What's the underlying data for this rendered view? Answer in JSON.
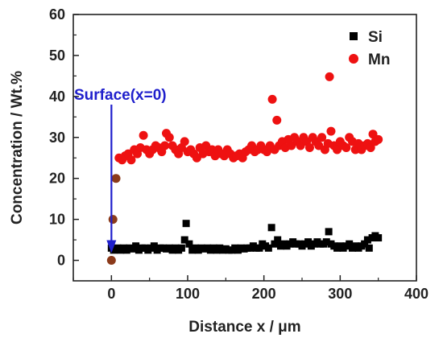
{
  "colors": {
    "si": "#000000",
    "mn": "#ee1111",
    "mn_near_surface": "#8b3a1a",
    "annotation": "#1f1fcc"
  },
  "chart_data": {
    "type": "scatter",
    "title": "",
    "xlabel": "Distance x / μm",
    "ylabel": "Concentration  / Wt.%",
    "xlim": [
      -50,
      400
    ],
    "ylim": [
      -5,
      60
    ],
    "xticks": [
      0,
      100,
      200,
      300,
      400
    ],
    "yticks": [
      0,
      10,
      20,
      30,
      40,
      50,
      60
    ],
    "grid": false,
    "legend_position": "top-right",
    "annotation": {
      "text": "Surface(x=0)",
      "arrow_x": 0,
      "arrow_y": 1
    },
    "series": [
      {
        "name": "Si",
        "marker": "square",
        "points": [
          [
            0,
            3
          ],
          [
            3,
            2.5
          ],
          [
            8,
            3
          ],
          [
            12,
            2.5
          ],
          [
            16,
            3
          ],
          [
            20,
            2.5
          ],
          [
            24,
            3
          ],
          [
            28,
            2.8
          ],
          [
            32,
            3.5
          ],
          [
            36,
            2.5
          ],
          [
            40,
            3
          ],
          [
            44,
            3
          ],
          [
            48,
            2.5
          ],
          [
            52,
            3
          ],
          [
            56,
            3.5
          ],
          [
            60,
            2.5
          ],
          [
            64,
            3
          ],
          [
            68,
            3
          ],
          [
            72,
            2.8
          ],
          [
            76,
            3
          ],
          [
            80,
            2.5
          ],
          [
            84,
            3
          ],
          [
            88,
            2.5
          ],
          [
            92,
            3
          ],
          [
            96,
            5
          ],
          [
            98,
            9
          ],
          [
            102,
            4
          ],
          [
            106,
            2.5
          ],
          [
            110,
            3
          ],
          [
            114,
            2.5
          ],
          [
            118,
            3
          ],
          [
            122,
            2.8
          ],
          [
            126,
            3
          ],
          [
            130,
            2.5
          ],
          [
            134,
            3
          ],
          [
            138,
            2.5
          ],
          [
            142,
            3
          ],
          [
            146,
            2.5
          ],
          [
            150,
            2.8
          ],
          [
            154,
            2.5
          ],
          [
            158,
            2.5
          ],
          [
            162,
            3
          ],
          [
            166,
            2.5
          ],
          [
            170,
            3
          ],
          [
            174,
            2.8
          ],
          [
            178,
            3
          ],
          [
            182,
            3
          ],
          [
            186,
            3.5
          ],
          [
            190,
            3
          ],
          [
            194,
            3
          ],
          [
            198,
            4
          ],
          [
            202,
            3.5
          ],
          [
            206,
            3
          ],
          [
            210,
            8
          ],
          [
            214,
            4
          ],
          [
            218,
            5
          ],
          [
            222,
            3.5
          ],
          [
            226,
            4
          ],
          [
            230,
            3.5
          ],
          [
            234,
            4
          ],
          [
            238,
            4.5
          ],
          [
            242,
            4
          ],
          [
            246,
            4
          ],
          [
            250,
            3.5
          ],
          [
            254,
            4
          ],
          [
            258,
            4.5
          ],
          [
            262,
            3.5
          ],
          [
            266,
            4
          ],
          [
            270,
            4.5
          ],
          [
            274,
            4
          ],
          [
            278,
            4
          ],
          [
            282,
            4.5
          ],
          [
            285,
            7
          ],
          [
            288,
            4
          ],
          [
            292,
            3.5
          ],
          [
            296,
            3
          ],
          [
            300,
            3.5
          ],
          [
            304,
            3
          ],
          [
            308,
            3.5
          ],
          [
            312,
            4
          ],
          [
            316,
            3
          ],
          [
            320,
            3.5
          ],
          [
            324,
            3
          ],
          [
            328,
            3.5
          ],
          [
            332,
            4
          ],
          [
            336,
            5
          ],
          [
            338,
            3
          ],
          [
            342,
            5.5
          ],
          [
            346,
            6
          ],
          [
            350,
            5.5
          ]
        ]
      },
      {
        "name": "Mn",
        "marker": "circle",
        "points": [
          [
            10,
            25
          ],
          [
            14,
            24.5
          ],
          [
            18,
            25.5
          ],
          [
            22,
            26
          ],
          [
            26,
            24.5
          ],
          [
            30,
            27
          ],
          [
            34,
            26
          ],
          [
            38,
            27.5
          ],
          [
            42,
            30.5
          ],
          [
            46,
            27
          ],
          [
            50,
            26
          ],
          [
            54,
            27
          ],
          [
            58,
            28
          ],
          [
            62,
            27.5
          ],
          [
            66,
            26.5
          ],
          [
            70,
            28
          ],
          [
            72,
            31
          ],
          [
            76,
            30
          ],
          [
            80,
            28
          ],
          [
            84,
            27
          ],
          [
            88,
            26
          ],
          [
            92,
            27.5
          ],
          [
            96,
            29
          ],
          [
            100,
            26.5
          ],
          [
            104,
            27
          ],
          [
            108,
            26
          ],
          [
            112,
            25
          ],
          [
            116,
            27.5
          ],
          [
            120,
            26
          ],
          [
            124,
            28
          ],
          [
            128,
            26.5
          ],
          [
            132,
            27
          ],
          [
            136,
            25.5
          ],
          [
            140,
            27
          ],
          [
            144,
            26
          ],
          [
            148,
            25.5
          ],
          [
            152,
            27
          ],
          [
            156,
            26
          ],
          [
            160,
            25
          ],
          [
            164,
            25.5
          ],
          [
            168,
            26
          ],
          [
            172,
            25
          ],
          [
            176,
            26.5
          ],
          [
            180,
            27
          ],
          [
            184,
            28
          ],
          [
            188,
            26.5
          ],
          [
            192,
            27
          ],
          [
            196,
            28
          ],
          [
            200,
            27
          ],
          [
            204,
            26.5
          ],
          [
            208,
            28
          ],
          [
            211,
            39.3
          ],
          [
            214,
            27
          ],
          [
            217,
            34.2
          ],
          [
            220,
            28
          ],
          [
            224,
            29
          ],
          [
            228,
            27.5
          ],
          [
            232,
            29.5
          ],
          [
            236,
            28
          ],
          [
            240,
            30
          ],
          [
            244,
            29
          ],
          [
            248,
            28
          ],
          [
            252,
            30
          ],
          [
            256,
            29
          ],
          [
            260,
            27.5
          ],
          [
            264,
            30
          ],
          [
            268,
            29
          ],
          [
            272,
            28
          ],
          [
            276,
            30
          ],
          [
            280,
            27
          ],
          [
            284,
            28.5
          ],
          [
            286,
            44.8
          ],
          [
            288,
            31.5
          ],
          [
            292,
            28
          ],
          [
            296,
            27
          ],
          [
            300,
            29
          ],
          [
            304,
            28
          ],
          [
            308,
            27.5
          ],
          [
            312,
            30
          ],
          [
            316,
            29
          ],
          [
            320,
            27
          ],
          [
            324,
            28.5
          ],
          [
            328,
            27
          ],
          [
            332,
            28
          ],
          [
            336,
            28.5
          ],
          [
            340,
            27.5
          ],
          [
            343,
            30.8
          ],
          [
            346,
            29
          ],
          [
            350,
            29.5
          ]
        ]
      },
      {
        "name": "",
        "marker": "circle",
        "points": [
          [
            0,
            0
          ],
          [
            2,
            10
          ],
          [
            6,
            20
          ]
        ]
      }
    ]
  }
}
